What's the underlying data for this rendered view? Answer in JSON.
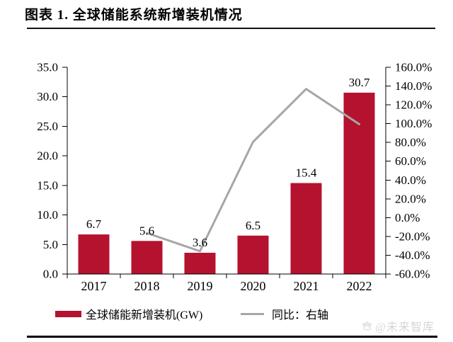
{
  "header": {
    "title": "图表 1. 全球储能系统新增装机情况"
  },
  "chart_data": {
    "type": "bar",
    "subtype": "dual-axis bar+line",
    "categories": [
      "2017",
      "2018",
      "2019",
      "2020",
      "2021",
      "2022"
    ],
    "series": [
      {
        "name": "全球储能新增装机(GW)",
        "type": "bar",
        "axis": "left",
        "color": "#b5122f",
        "values": [
          6.7,
          5.6,
          3.6,
          6.5,
          15.4,
          30.7
        ],
        "data_labels": [
          "6.7",
          "5.6",
          "3.6",
          "6.5",
          "15.4",
          "30.7"
        ]
      },
      {
        "name": "同比：右轴",
        "type": "line",
        "axis": "right",
        "color": "#a6a6a6",
        "values": [
          null,
          -16.4,
          -35.7,
          80.6,
          136.9,
          99.4
        ]
      }
    ],
    "left_axis": {
      "min": 0,
      "max": 35,
      "step": 5,
      "tick_labels": [
        "35.0",
        "30.0",
        "25.0",
        "20.0",
        "15.0",
        "10.0",
        "5.0",
        "0.0"
      ]
    },
    "right_axis": {
      "min": -60,
      "max": 160,
      "step": 20,
      "tick_labels": [
        "160.0%",
        "140.0%",
        "120.0%",
        "100.0%",
        "80.0%",
        "60.0%",
        "40.0%",
        "20.0%",
        "0.0%",
        "-20.0%",
        "-40.0%",
        "-60.0%"
      ]
    },
    "grid": false,
    "legend_position": "bottom",
    "axis_color": "#000000",
    "text_color": "#000000"
  },
  "legend": {
    "bar_label": "全球储能新增装机(GW)",
    "line_label": "同比：右轴"
  },
  "watermark": {
    "text": "@未来智库",
    "icon": "paw-icon"
  }
}
